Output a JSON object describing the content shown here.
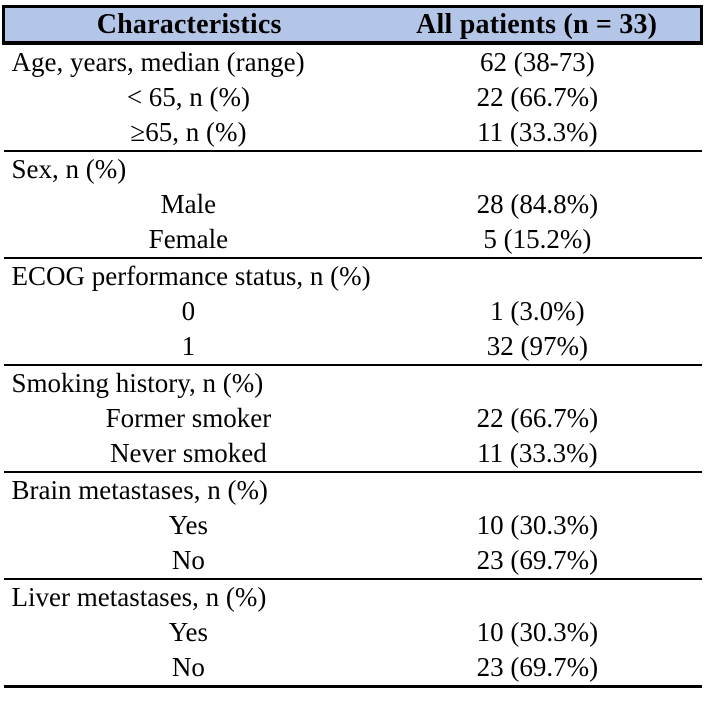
{
  "colors": {
    "header_bg": "#b4c6e7",
    "line": "#000000"
  },
  "table": {
    "columns": {
      "characteristics": "Characteristics",
      "all_patients": "All patients (n = 33)"
    },
    "sections": [
      {
        "rows": [
          {
            "label": "Age, years, median (range)",
            "value": "62 (38-73)"
          },
          {
            "label": "< 65, n (%)",
            "value": "22 (66.7%)"
          },
          {
            "label": "≥65, n (%)",
            "value": "11 (33.3%)"
          }
        ]
      },
      {
        "rows": [
          {
            "label": "Sex, n (%)",
            "value": ""
          },
          {
            "label": "Male",
            "value": "28 (84.8%)"
          },
          {
            "label": "Female",
            "value": "5 (15.2%)"
          }
        ]
      },
      {
        "rows": [
          {
            "label": "ECOG performance status, n (%)",
            "value": ""
          },
          {
            "label": "0",
            "value": "1 (3.0%)"
          },
          {
            "label": "1",
            "value": "32 (97%)"
          }
        ]
      },
      {
        "rows": [
          {
            "label": "Smoking history, n (%)",
            "value": ""
          },
          {
            "label": "Former smoker",
            "value": "22 (66.7%)"
          },
          {
            "label": "Never smoked",
            "value": "11 (33.3%)"
          }
        ]
      },
      {
        "rows": [
          {
            "label": "Brain metastases, n (%)",
            "value": ""
          },
          {
            "label": "Yes",
            "value": "10 (30.3%)"
          },
          {
            "label": "No",
            "value": "23 (69.7%)"
          }
        ]
      },
      {
        "rows": [
          {
            "label": "Liver metastases, n (%)",
            "value": ""
          },
          {
            "label": "Yes",
            "value": "10 (30.3%)"
          },
          {
            "label": "No",
            "value": "23 (69.7%)"
          }
        ]
      }
    ]
  }
}
